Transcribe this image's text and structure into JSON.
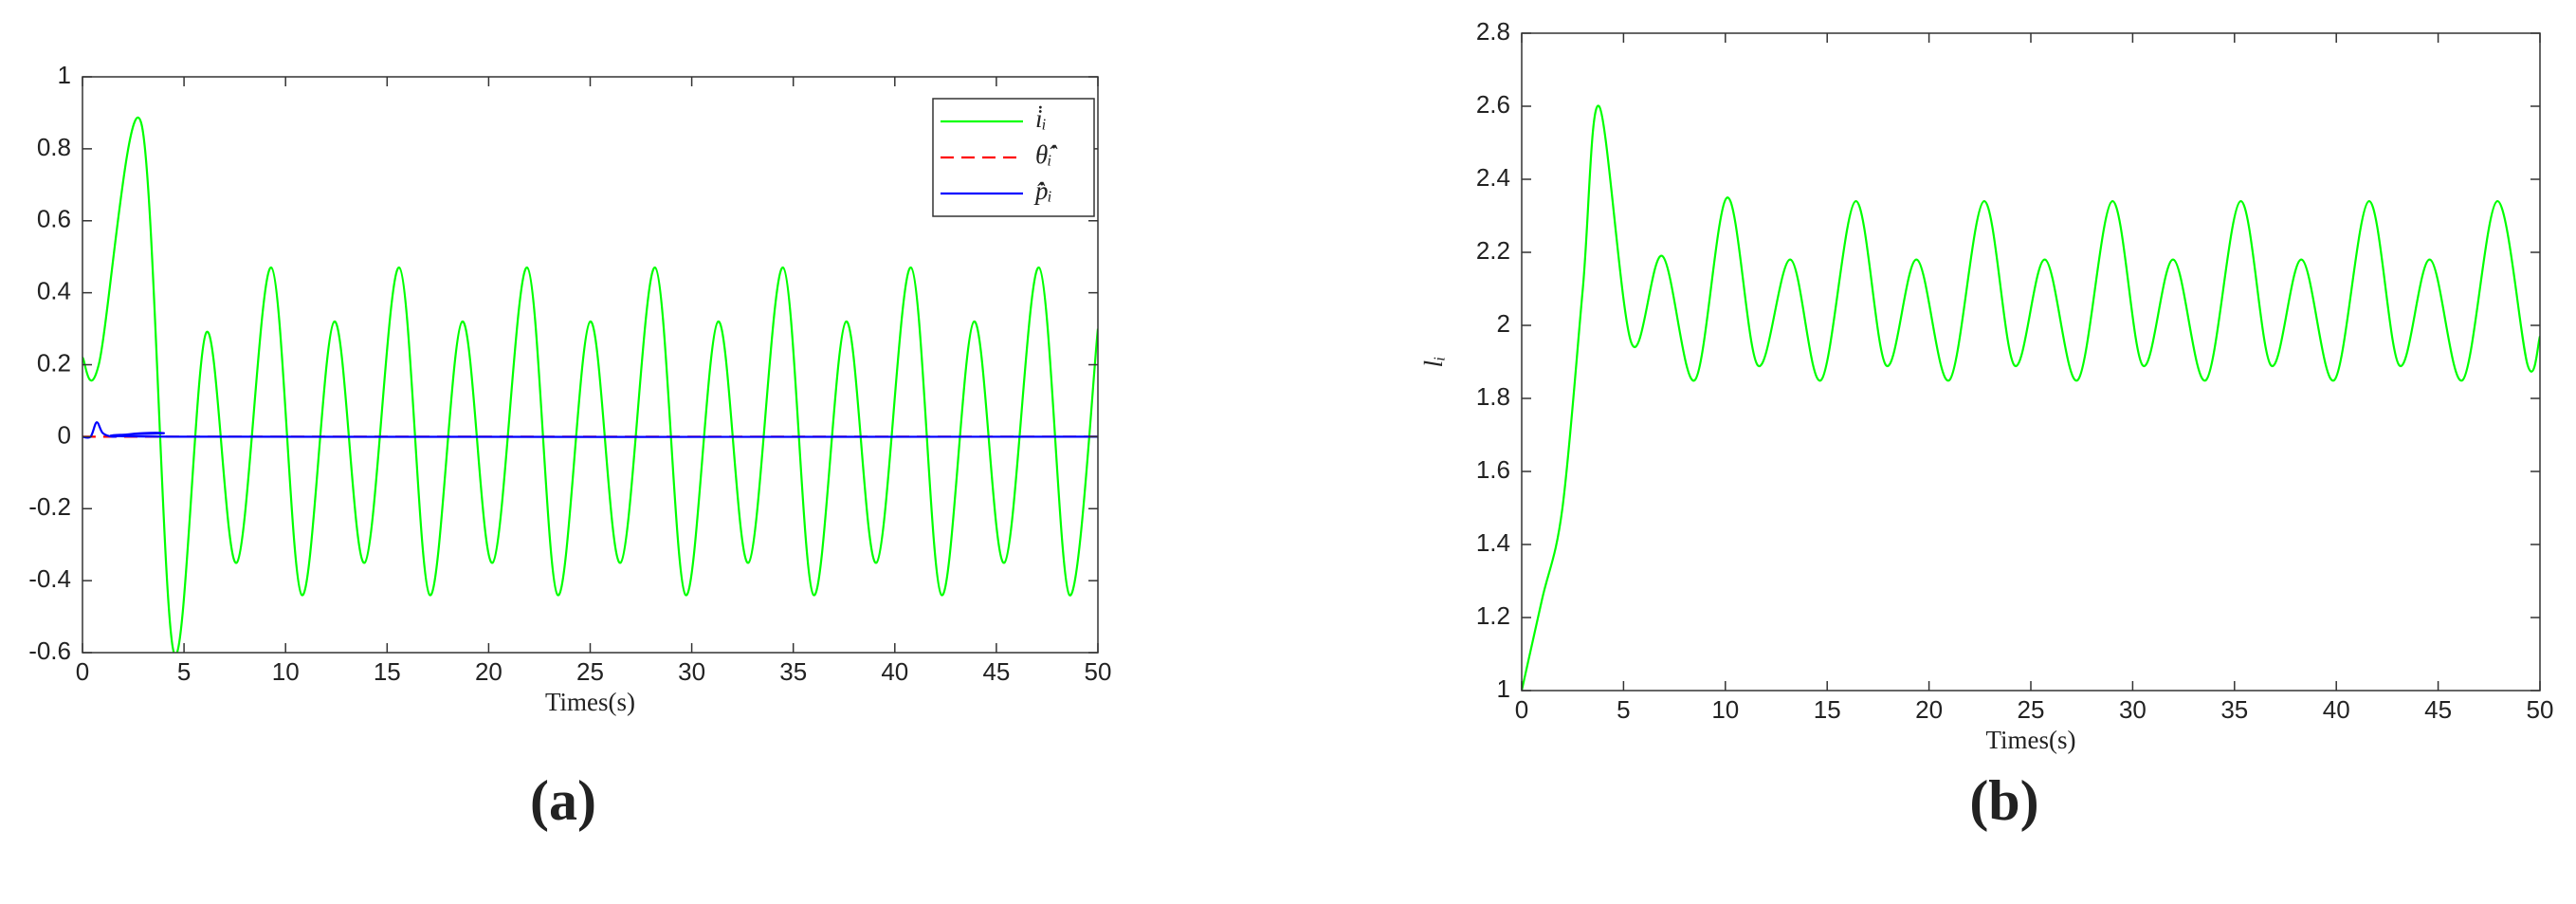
{
  "chart_data": [
    {
      "type": "line",
      "xlabel": "Times(s)",
      "panel_label": "(a)",
      "legend": "upper right",
      "xlim": [
        0,
        50
      ],
      "ylim": [
        -0.6,
        1
      ],
      "xticks": [
        0,
        5,
        10,
        15,
        20,
        25,
        30,
        35,
        40,
        45,
        50
      ],
      "yticks": [
        -0.6,
        -0.4,
        -0.2,
        0,
        0.2,
        0.4,
        0.6,
        0.8,
        1
      ],
      "series": [
        {
          "name": "i̇ᵢ",
          "color": "#00ff00",
          "style": "solid",
          "x": [
            0,
            0.8,
            2.9,
            4.5,
            6.1,
            7.6,
            9.3,
            10.8,
            12.4,
            13.9,
            15.6,
            17.1,
            18.7,
            20.2,
            21.9,
            23.4,
            25,
            26.5,
            28.2,
            29.7,
            31.3,
            32.8,
            34.5,
            36,
            37.6,
            39.1,
            40.8,
            42.3,
            43.9,
            45.4,
            47.1,
            48.6,
            50
          ],
          "values": [
            0.22,
            0.2,
            0.87,
            -0.6,
            0.29,
            -0.35,
            0.47,
            -0.44,
            0.32,
            -0.35,
            0.47,
            -0.44,
            0.32,
            -0.35,
            0.47,
            -0.44,
            0.32,
            -0.35,
            0.47,
            -0.44,
            0.32,
            -0.35,
            0.47,
            -0.44,
            0.32,
            -0.35,
            0.47,
            -0.44,
            0.32,
            -0.35,
            0.47,
            -0.44,
            0.3
          ]
        },
        {
          "name": "θ̂̇ᵢ",
          "color": "#ff0000",
          "style": "dashed",
          "x": [
            0,
            50
          ],
          "values": [
            0,
            0
          ]
        },
        {
          "name": "p̂̇ᵢ",
          "color": "#0000ff",
          "style": "solid",
          "x": [
            0,
            0.4,
            0.7,
            1.0,
            1.5,
            2,
            3,
            4,
            5,
            50
          ],
          "values": [
            0,
            0,
            0.04,
            0.01,
            0,
            0.005,
            0.01,
            0.01,
            0,
            0
          ]
        }
      ]
    },
    {
      "type": "line",
      "xlabel": "Times(s)",
      "ylabel": "lᵢ",
      "panel_label": "(b)",
      "xlim": [
        0,
        50
      ],
      "ylim": [
        1,
        2.8
      ],
      "xticks": [
        0,
        5,
        10,
        15,
        20,
        25,
        30,
        35,
        40,
        45,
        50
      ],
      "yticks": [
        1,
        1.2,
        1.4,
        1.6,
        1.8,
        2,
        2.2,
        2.4,
        2.6,
        2.8
      ],
      "series": [
        {
          "color": "#00ff00",
          "style": "solid",
          "x": [
            0,
            1,
            2,
            3,
            3.8,
            5.4,
            6.9,
            8.5,
            10.1,
            11.6,
            13.2,
            14.7,
            16.4,
            17.9,
            19.4,
            21,
            22.7,
            24.2,
            25.7,
            27.3,
            29,
            30.5,
            32,
            33.6,
            35.3,
            36.8,
            38.3,
            39.9,
            41.6,
            43.1,
            44.6,
            46.2,
            47.9,
            49.4,
            50
          ],
          "values": [
            1,
            1.25,
            1.5,
            2.1,
            2.6,
            1.95,
            2.19,
            1.85,
            2.35,
            1.89,
            2.18,
            1.85,
            2.34,
            1.89,
            2.18,
            1.85,
            2.34,
            1.89,
            2.18,
            1.85,
            2.34,
            1.89,
            2.18,
            1.85,
            2.34,
            1.89,
            2.18,
            1.85,
            2.34,
            1.89,
            2.18,
            1.85,
            2.34,
            1.89,
            1.97
          ]
        }
      ]
    }
  ]
}
